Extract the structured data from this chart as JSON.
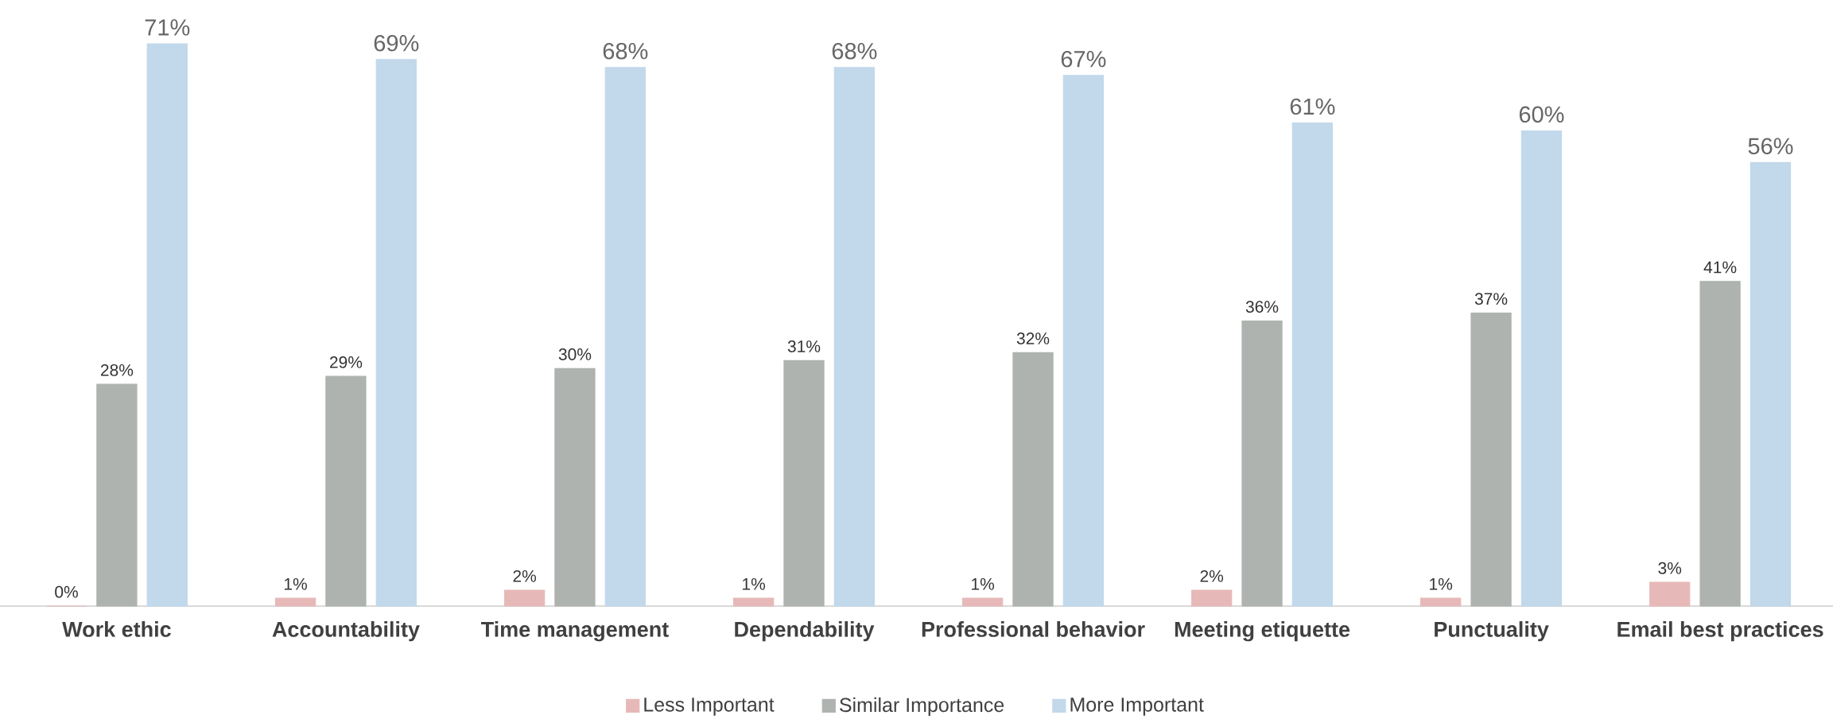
{
  "chart_data": {
    "type": "bar",
    "categories": [
      "Work ethic",
      "Accountability",
      "Time management",
      "Dependability",
      "Professional behavior",
      "Meeting etiquette",
      "Punctuality",
      "Email best practices"
    ],
    "series": [
      {
        "name": "Less Important",
        "color": "#e6b9b8",
        "values": [
          0,
          1,
          2,
          1,
          1,
          2,
          1,
          3
        ],
        "value_labels": [
          "0%",
          "1%",
          "2%",
          "1%",
          "1%",
          "2%",
          "1%",
          "3%"
        ]
      },
      {
        "name": "Similar Importance",
        "color": "#afb3af",
        "values": [
          28,
          29,
          30,
          31,
          32,
          36,
          37,
          41
        ],
        "value_labels": [
          "28%",
          "29%",
          "30%",
          "31%",
          "32%",
          "36%",
          "37%",
          "41%"
        ]
      },
      {
        "name": "More Important",
        "color": "#c2d8eb",
        "values": [
          71,
          69,
          68,
          68,
          67,
          61,
          60,
          56
        ],
        "value_labels": [
          "71%",
          "69%",
          "68%",
          "68%",
          "67%",
          "61%",
          "60%",
          "56%"
        ]
      }
    ],
    "legend": "bottom"
  }
}
